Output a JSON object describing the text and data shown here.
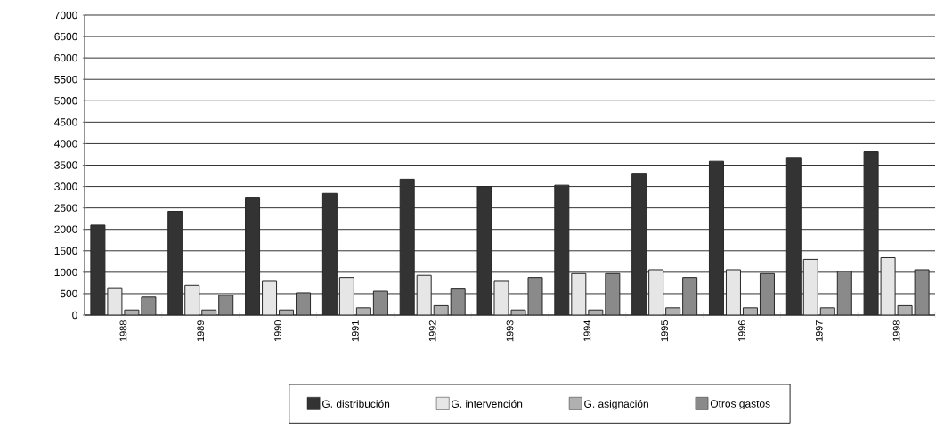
{
  "chart_data": {
    "type": "bar",
    "categories": [
      "1988",
      "1989",
      "1990",
      "1991",
      "1992",
      "1993",
      "1994",
      "1995",
      "1996",
      "1997",
      "1998"
    ],
    "series": [
      {
        "name": "G. distribución",
        "color": "#333333",
        "values": [
          2100,
          2420,
          2750,
          2840,
          3170,
          3000,
          3030,
          3310,
          3590,
          3680,
          3810
        ]
      },
      {
        "name": "G. intervención",
        "color": "#e6e6e6",
        "values": [
          620,
          700,
          790,
          880,
          930,
          790,
          970,
          1060,
          1060,
          1300,
          1340
        ]
      },
      {
        "name": "G. asignación",
        "color": "#b0b0b0",
        "values": [
          120,
          120,
          120,
          170,
          220,
          120,
          120,
          170,
          170,
          170,
          220
        ]
      },
      {
        "name": "Otros gastos",
        "color": "#8a8a8a",
        "values": [
          420,
          460,
          520,
          560,
          610,
          880,
          970,
          880,
          970,
          1020,
          1060
        ]
      }
    ],
    "ylim": [
      0,
      7000
    ],
    "yticks": [
      0,
      500,
      1000,
      1500,
      2000,
      2500,
      3000,
      3500,
      4000,
      4500,
      5000,
      5500,
      6000,
      6500,
      7000
    ],
    "grid": "y",
    "legend": "bottom"
  }
}
